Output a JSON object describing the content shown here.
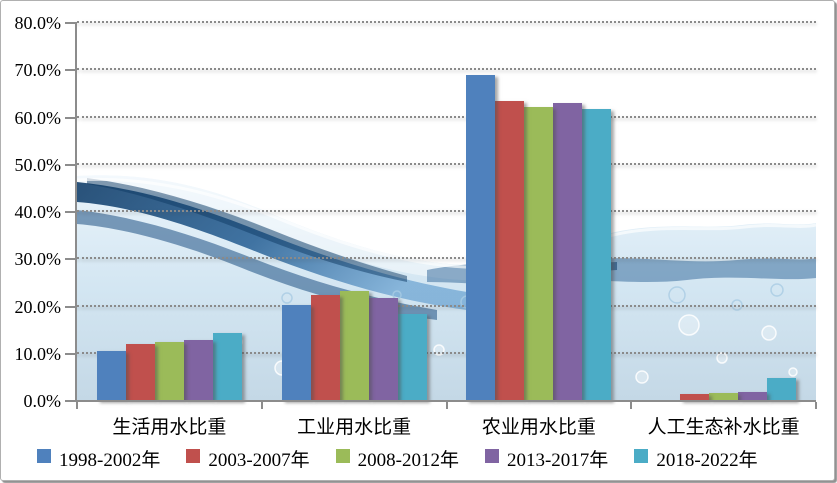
{
  "chart_data": {
    "type": "bar",
    "title": "",
    "categories": [
      "生活用水比重",
      "工业用水比重",
      "农业用水比重",
      "人工生态补水比重"
    ],
    "series": [
      {
        "name": "1998-2002年",
        "color": "#4F81BD",
        "values": [
          10.5,
          20.4,
          69.0,
          0.0
        ]
      },
      {
        "name": "2003-2007年",
        "color": "#C0504D",
        "values": [
          12.0,
          22.5,
          63.6,
          1.5
        ]
      },
      {
        "name": "2008-2012年",
        "color": "#9BBB59",
        "values": [
          12.5,
          23.2,
          62.2,
          1.7
        ]
      },
      {
        "name": "2013-2017年",
        "color": "#8064A2",
        "values": [
          13.0,
          21.7,
          63.0,
          2.0
        ]
      },
      {
        "name": "2018-2022年",
        "color": "#4BACC6",
        "values": [
          14.5,
          18.5,
          61.9,
          4.8
        ]
      }
    ],
    "y_axis": {
      "min": 0,
      "max": 80,
      "step": 10,
      "format": "percent",
      "tick_labels": [
        "80.0%",
        "70.0%",
        "60.0%",
        "50.0%",
        "40.0%",
        "30.0%",
        "20.0%",
        "10.0%",
        "0.0%"
      ]
    },
    "grid": "horizontal-dotted",
    "legend_position": "bottom",
    "plot_background": "water-splash-photo"
  },
  "style": {
    "axis_color": "#8C8C8C",
    "gridline_color": "#8A8A8A",
    "frame_border_color": "#B0B0B0",
    "frame_shadow_color": "#8F8F8F"
  }
}
